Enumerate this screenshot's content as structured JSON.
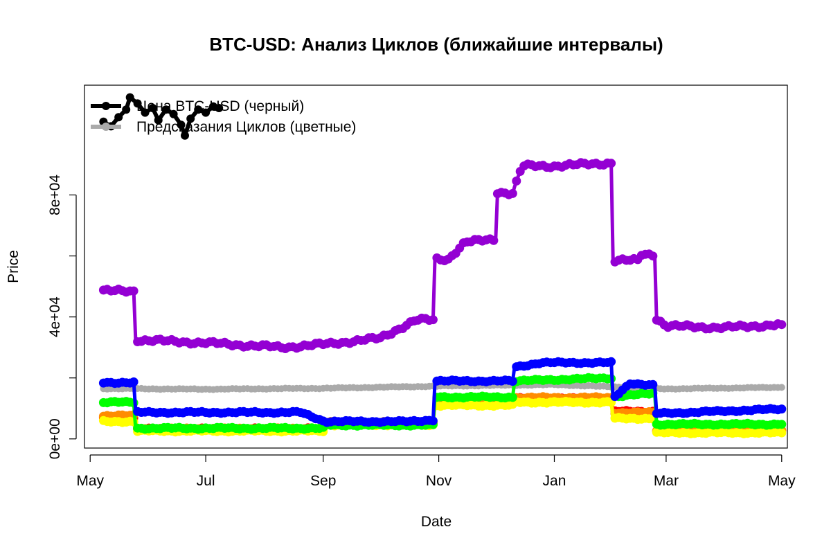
{
  "chart_data": {
    "type": "line",
    "title": "BTC-USD: Анализ Циклов (ближайшие интервалы)",
    "xlabel": "Date",
    "ylabel": "Price",
    "xlim": [
      "2024-04-28",
      "2025-05-04"
    ],
    "ylim": [
      -3000,
      116000
    ],
    "x_ticks": [
      {
        "date": "2024-05-01",
        "label": "May"
      },
      {
        "date": "2024-07-01",
        "label": "Jul"
      },
      {
        "date": "2024-09-01",
        "label": "Sep"
      },
      {
        "date": "2024-11-01",
        "label": "Nov"
      },
      {
        "date": "2025-01-01",
        "label": "Jan"
      },
      {
        "date": "2025-03-01",
        "label": "Mar"
      },
      {
        "date": "2025-05-01",
        "label": "May"
      }
    ],
    "y_ticks": [
      {
        "value": 0,
        "label": "0e+00"
      },
      {
        "value": 40000,
        "label": "4e+04"
      },
      {
        "value": 80000,
        "label": "8e+04"
      }
    ],
    "legend": {
      "position": "top-left",
      "entries": [
        {
          "label": "Цена BTC-USD (черный)",
          "color": "#000000"
        },
        {
          "label": "Предсказания Циклов (цветные)",
          "color": "#aaaaaa"
        }
      ]
    },
    "series": [
      {
        "color": "#aaaaaa",
        "points": [
          [
            "2024-05-08",
            16500
          ],
          [
            "2024-07-01",
            16300
          ],
          [
            "2024-09-01",
            16600
          ],
          [
            "2024-11-01",
            17300
          ],
          [
            "2025-01-01",
            17800
          ],
          [
            "2025-03-01",
            16400
          ],
          [
            "2025-05-01",
            16900
          ]
        ]
      },
      {
        "color": "#ff0000",
        "points": [
          [
            "2024-05-08",
            7000
          ],
          [
            "2024-05-24",
            7000
          ],
          [
            "2024-05-25",
            3300
          ],
          [
            "2024-09-01",
            3300
          ],
          [
            "2024-09-02",
            5300
          ],
          [
            "2024-10-29",
            5300
          ],
          [
            "2024-10-30",
            11800
          ],
          [
            "2024-12-10",
            11800
          ],
          [
            "2024-12-11",
            13200
          ],
          [
            "2025-01-31",
            13200
          ],
          [
            "2025-02-01",
            9000
          ],
          [
            "2025-02-23",
            9000
          ],
          [
            "2025-02-24",
            2700
          ],
          [
            "2025-05-01",
            2700
          ]
        ]
      },
      {
        "color": "#ff8c00",
        "points": [
          [
            "2024-05-08",
            7600
          ],
          [
            "2024-05-24",
            7600
          ],
          [
            "2024-05-25",
            3300
          ],
          [
            "2024-09-01",
            3300
          ],
          [
            "2024-09-02",
            5400
          ],
          [
            "2024-10-29",
            5400
          ],
          [
            "2024-10-30",
            13000
          ],
          [
            "2024-12-10",
            13000
          ],
          [
            "2024-12-11",
            13500
          ],
          [
            "2025-01-31",
            13500
          ],
          [
            "2025-02-01",
            8600
          ],
          [
            "2025-02-23",
            8600
          ],
          [
            "2025-02-24",
            2800
          ],
          [
            "2025-05-01",
            2800
          ]
        ]
      },
      {
        "color": "#ffff00",
        "points": [
          [
            "2024-05-08",
            5700
          ],
          [
            "2024-05-24",
            5700
          ],
          [
            "2024-05-25",
            2600
          ],
          [
            "2024-09-01",
            2600
          ],
          [
            "2024-09-02",
            4600
          ],
          [
            "2024-10-29",
            4600
          ],
          [
            "2024-10-30",
            11000
          ],
          [
            "2024-12-10",
            11000
          ],
          [
            "2024-12-11",
            12000
          ],
          [
            "2025-01-31",
            12000
          ],
          [
            "2025-02-01",
            6700
          ],
          [
            "2025-02-23",
            6700
          ],
          [
            "2025-02-24",
            2000
          ],
          [
            "2025-05-01",
            2000
          ]
        ]
      },
      {
        "color": "#00ff00",
        "points": [
          [
            "2024-05-08",
            12000
          ],
          [
            "2024-05-24",
            12000
          ],
          [
            "2024-05-25",
            3500
          ],
          [
            "2024-09-01",
            3500
          ],
          [
            "2024-09-02",
            4500
          ],
          [
            "2024-10-29",
            4500
          ],
          [
            "2024-10-30",
            13700
          ],
          [
            "2024-12-10",
            13700
          ],
          [
            "2024-12-11",
            19000
          ],
          [
            "2025-01-31",
            20000
          ],
          [
            "2025-02-01",
            13800
          ],
          [
            "2025-02-23",
            15000
          ],
          [
            "2025-02-24",
            4800
          ],
          [
            "2025-05-01",
            4800
          ]
        ]
      },
      {
        "color": "#0000ff",
        "points": [
          [
            "2024-05-08",
            18500
          ],
          [
            "2024-05-24",
            18500
          ],
          [
            "2024-05-25",
            8700
          ],
          [
            "2024-08-20",
            8700
          ],
          [
            "2024-09-02",
            5700
          ],
          [
            "2024-10-15",
            5700
          ],
          [
            "2024-10-29",
            6200
          ],
          [
            "2024-10-30",
            19000
          ],
          [
            "2024-12-10",
            19000
          ],
          [
            "2024-12-11",
            23500
          ],
          [
            "2024-12-25",
            25000
          ],
          [
            "2025-01-31",
            25000
          ],
          [
            "2025-02-01",
            13200
          ],
          [
            "2025-02-10",
            18300
          ],
          [
            "2025-02-23",
            17500
          ],
          [
            "2025-02-24",
            8300
          ],
          [
            "2025-05-01",
            9800
          ]
        ]
      },
      {
        "color": "#9400d3",
        "points": [
          [
            "2024-05-08",
            48500
          ],
          [
            "2024-05-24",
            48500
          ],
          [
            "2024-05-25",
            32500
          ],
          [
            "2024-07-01",
            31500
          ],
          [
            "2024-08-10",
            30000
          ],
          [
            "2024-09-01",
            31000
          ],
          [
            "2024-10-01",
            33000
          ],
          [
            "2024-10-20",
            39000
          ],
          [
            "2024-10-29",
            39000
          ],
          [
            "2024-10-30",
            59000
          ],
          [
            "2024-11-06",
            59000
          ],
          [
            "2024-11-15",
            64500
          ],
          [
            "2024-12-01",
            65500
          ],
          [
            "2024-12-02",
            81000
          ],
          [
            "2024-12-10",
            80500
          ],
          [
            "2024-12-15",
            89500
          ],
          [
            "2025-01-01",
            89500
          ],
          [
            "2025-01-31",
            90500
          ],
          [
            "2025-02-01",
            58500
          ],
          [
            "2025-02-15",
            58500
          ],
          [
            "2025-02-16",
            60500
          ],
          [
            "2025-02-23",
            60500
          ],
          [
            "2025-02-24",
            39500
          ],
          [
            "2025-03-01",
            37000
          ],
          [
            "2025-04-01",
            36500
          ],
          [
            "2025-05-01",
            37500
          ]
        ]
      }
    ],
    "price": {
      "label": "Цена BTC-USD (черный)",
      "color": "#000000",
      "points": [
        [
          "2024-05-08",
          104000
        ],
        [
          "2024-05-12",
          102500
        ],
        [
          "2024-05-16",
          105500
        ],
        [
          "2024-05-20",
          108000
        ],
        [
          "2024-05-22",
          112000
        ],
        [
          "2024-05-26",
          110000
        ],
        [
          "2024-05-30",
          107000
        ],
        [
          "2024-06-03",
          108500
        ],
        [
          "2024-06-06",
          104500
        ],
        [
          "2024-06-10",
          108000
        ],
        [
          "2024-06-14",
          106500
        ],
        [
          "2024-06-18",
          103000
        ],
        [
          "2024-06-20",
          99500
        ],
        [
          "2024-06-23",
          105000
        ],
        [
          "2024-06-27",
          108000
        ],
        [
          "2024-07-01",
          107000
        ],
        [
          "2024-07-05",
          109000
        ],
        [
          "2024-07-08",
          108500
        ]
      ]
    }
  }
}
